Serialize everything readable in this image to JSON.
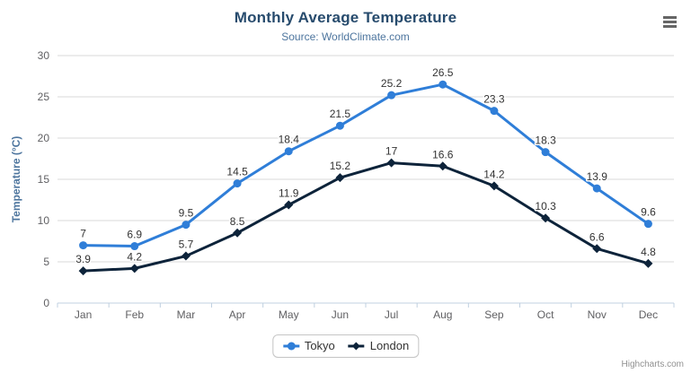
{
  "header": {
    "menu_icon": "hamburger-menu"
  },
  "chart_data": {
    "type": "line",
    "title": "Monthly Average Temperature",
    "subtitle": "Source: WorldClimate.com",
    "xlabel": "",
    "ylabel": "Temperature (°C)",
    "ylim": [
      0,
      30
    ],
    "yticks": [
      0,
      5,
      10,
      15,
      20,
      25,
      30
    ],
    "grid": true,
    "legend_position": "bottom-center",
    "categories": [
      "Jan",
      "Feb",
      "Mar",
      "Apr",
      "May",
      "Jun",
      "Jul",
      "Aug",
      "Sep",
      "Oct",
      "Nov",
      "Dec"
    ],
    "series": [
      {
        "name": "Tokyo",
        "color": "#2f7ed8",
        "marker": "circle",
        "values": [
          7,
          6.9,
          9.5,
          14.5,
          18.4,
          21.5,
          25.2,
          26.5,
          23.3,
          18.3,
          13.9,
          9.6
        ]
      },
      {
        "name": "London",
        "color": "#0d233a",
        "marker": "diamond",
        "values": [
          3.9,
          4.2,
          5.7,
          8.5,
          11.9,
          15.2,
          17,
          16.6,
          14.2,
          10.3,
          6.6,
          4.8
        ]
      }
    ]
  },
  "credits": "Highcharts.com",
  "colors": {
    "title": "#274b6d",
    "subtitle": "#4d759e",
    "axis_title": "#4d759e",
    "tick_label": "#606063",
    "grid_line": "#d8d8d8",
    "axis_line": "#c0d0e0",
    "data_label": "#333333",
    "legend_text": "#333333",
    "legend_border": "#c6c6c6",
    "credits_text": "#909090",
    "menu_icon": "#666666"
  }
}
